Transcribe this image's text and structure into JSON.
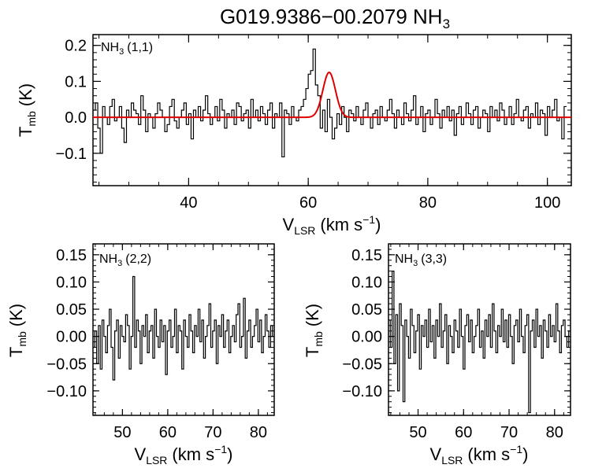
{
  "chart_data": [
    {
      "type": "line",
      "title_main": "G019.9386−00.2079 NH",
      "title_sub": "3",
      "panel_label": "(1,1)",
      "xlabel_main": "V",
      "xlabel_sub": "LSR",
      "xlabel_unit": "(km s",
      "xlabel_sup": "−1",
      "ylabel_main": "T",
      "ylabel_sub": "mb",
      "ylabel_unit": "(K)",
      "xlim": [
        24,
        104
      ],
      "ylim": [
        -0.19,
        0.23
      ],
      "xticks": [
        40,
        60,
        80,
        100
      ],
      "yticks": [
        -0.1,
        0.0,
        0.1,
        0.2
      ],
      "ytick_labels": [
        "−0.1",
        "0.0",
        "0.1",
        "0.2"
      ],
      "spectrum": {
        "x_start": 24,
        "dx": 0.4,
        "values": [
          0.02,
          0.04,
          -0.03,
          -0.1,
          0.03,
          0.0,
          -0.02,
          0.03,
          0.05,
          -0.01,
          0.0,
          0.03,
          -0.03,
          -0.07,
          0.02,
          0.0,
          0.04,
          0.02,
          0.01,
          -0.02,
          0.06,
          0.02,
          -0.04,
          0.01,
          0.0,
          -0.03,
          0.01,
          0.04,
          0.02,
          0.0,
          -0.04,
          -0.02,
          0.03,
          0.05,
          -0.01,
          -0.03,
          0.0,
          0.02,
          0.04,
          -0.02,
          0.01,
          -0.06,
          0.02,
          0.0,
          0.03,
          -0.01,
          0.02,
          0.06,
          0.01,
          -0.02,
          0.0,
          0.03,
          -0.01,
          0.05,
          0.02,
          -0.03,
          0.01,
          0.0,
          0.02,
          -0.02,
          0.04,
          0.03,
          -0.01,
          0.01,
          0.02,
          -0.03,
          0.05,
          0.0,
          0.02,
          -0.01,
          0.03,
          0.01,
          -0.02,
          0.02,
          0.04,
          -0.03,
          0.01,
          0.0,
          0.04,
          -0.11,
          0.02,
          0.01,
          -0.02,
          0.03,
          0.0,
          -0.01,
          0.02,
          0.03,
          0.05,
          0.08,
          0.12,
          0.13,
          0.19,
          0.09,
          0.06,
          -0.03,
          0.02,
          -0.04,
          0.05,
          0.0,
          -0.06,
          -0.03,
          0.01,
          -0.02,
          0.03,
          0.0,
          -0.04,
          0.02,
          0.01,
          -0.01,
          0.03,
          0.0,
          -0.02,
          0.02,
          0.04,
          0.0,
          -0.03,
          0.01,
          0.02,
          -0.02,
          0.03,
          0.0,
          -0.01,
          0.02,
          0.05,
          0.01,
          -0.03,
          0.02,
          0.0,
          -0.02,
          0.04,
          0.01,
          -0.01,
          0.02,
          0.06,
          -0.02,
          0.0,
          0.03,
          -0.04,
          0.01,
          0.02,
          -0.02,
          0.0,
          0.05,
          0.01,
          -0.03,
          0.02,
          0.0,
          0.03,
          -0.01,
          0.02,
          -0.05,
          0.01,
          0.03,
          -0.02,
          0.0,
          0.04,
          0.01,
          -0.02,
          0.02,
          0.03,
          -0.03,
          0.0,
          0.02,
          0.01,
          -0.04,
          0.03,
          0.0,
          0.02,
          -0.01,
          0.04,
          0.02,
          -0.02,
          0.0,
          0.03,
          -0.02,
          0.01,
          0.05,
          0.0,
          -0.01,
          0.02,
          0.03,
          -0.03,
          0.01,
          0.0,
          0.04,
          -0.02,
          0.02,
          0.01,
          -0.05,
          0.03,
          0.0,
          0.02,
          0.05,
          -0.01,
          0.0,
          -0.06,
          0.03
        ]
      },
      "fit": {
        "amplitude": 0.125,
        "center": 63.5,
        "sigma": 1.05
      }
    },
    {
      "type": "line",
      "panel_label": "(2,2)",
      "xlabel_main": "V",
      "xlabel_sub": "LSR",
      "xlabel_unit": "(km s",
      "xlabel_sup": "−1",
      "ylabel_main": "T",
      "ylabel_sub": "mb",
      "ylabel_unit": "(K)",
      "xlim": [
        43.5,
        83.5
      ],
      "ylim": [
        -0.145,
        0.17
      ],
      "xticks": [
        50,
        60,
        70,
        80
      ],
      "yticks": [
        -0.1,
        -0.05,
        0.0,
        0.05,
        0.1,
        0.15
      ],
      "ytick_labels": [
        "−0.10",
        "−0.05",
        "0.00",
        "0.05",
        "0.10",
        "0.15"
      ],
      "spectrum": {
        "x_start": 43.5,
        "dx": 0.4,
        "values": [
          -0.02,
          0.01,
          -0.05,
          0.02,
          -0.06,
          0.03,
          0.0,
          -0.03,
          0.02,
          0.05,
          -0.02,
          -0.08,
          0.01,
          0.03,
          -0.04,
          0.02,
          0.0,
          -0.01,
          0.04,
          0.02,
          -0.06,
          0.0,
          0.11,
          -0.02,
          0.03,
          0.01,
          -0.05,
          0.02,
          0.0,
          0.04,
          -0.03,
          0.01,
          0.02,
          -0.04,
          0.05,
          0.0,
          -0.02,
          0.03,
          -0.01,
          0.02,
          -0.07,
          0.01,
          0.03,
          -0.02,
          0.0,
          0.05,
          -0.03,
          0.02,
          0.01,
          -0.06,
          0.03,
          0.0,
          -0.02,
          0.04,
          0.01,
          -0.03,
          0.02,
          0.0,
          0.05,
          -0.01,
          0.03,
          -0.04,
          0.0,
          0.02,
          0.06,
          -0.02,
          0.01,
          0.03,
          -0.05,
          0.02,
          0.0,
          0.04,
          -0.02,
          0.01,
          0.03,
          -0.03,
          0.0,
          0.02,
          -0.01,
          0.04,
          0.06,
          -0.02,
          0.0,
          0.07,
          -0.04,
          0.01,
          0.03,
          -0.02,
          0.0,
          0.02,
          0.05,
          -0.01,
          0.03,
          -0.03,
          0.0,
          0.04,
          0.01,
          -0.02,
          0.02,
          0.0
        ]
      }
    },
    {
      "type": "line",
      "panel_label": "(3,3)",
      "xlabel_main": "V",
      "xlabel_sub": "LSR",
      "xlabel_unit": "(km s",
      "xlabel_sup": "−1",
      "ylabel_main": "T",
      "ylabel_sub": "mb",
      "ylabel_unit": "(K)",
      "xlim": [
        43.5,
        83.5
      ],
      "ylim": [
        -0.145,
        0.17
      ],
      "xticks": [
        50,
        60,
        70,
        80
      ],
      "yticks": [
        -0.1,
        -0.05,
        0.0,
        0.05,
        0.1,
        0.15
      ],
      "ytick_labels": [
        "−0.10",
        "−0.05",
        "0.00",
        "0.05",
        "0.10",
        "0.15"
      ],
      "spectrum": {
        "x_start": 43.5,
        "dx": 0.4,
        "values": [
          0.03,
          -0.02,
          0.12,
          -0.05,
          0.04,
          -0.1,
          0.06,
          0.02,
          -0.12,
          0.03,
          0.0,
          -0.04,
          0.05,
          0.02,
          -0.03,
          0.01,
          0.04,
          -0.06,
          0.02,
          0.0,
          0.03,
          -0.02,
          0.05,
          -0.01,
          0.02,
          -0.04,
          0.03,
          0.0,
          0.06,
          -0.02,
          0.01,
          0.04,
          -0.05,
          0.02,
          0.0,
          -0.03,
          0.03,
          0.01,
          -0.02,
          0.05,
          0.0,
          -0.06,
          0.02,
          0.04,
          -0.01,
          0.03,
          -0.03,
          0.0,
          0.02,
          0.05,
          -0.02,
          0.01,
          -0.04,
          0.03,
          0.0,
          0.04,
          -0.02,
          0.06,
          0.01,
          -0.03,
          0.02,
          0.0,
          0.05,
          -0.01,
          0.03,
          -0.02,
          0.04,
          0.0,
          -0.05,
          0.02,
          0.03,
          -0.01,
          0.05,
          0.0,
          -0.03,
          0.02,
          0.04,
          -0.14,
          0.01,
          0.03,
          -0.02,
          0.05,
          0.0,
          0.02,
          -0.04,
          0.03,
          0.01,
          -0.02,
          0.04,
          0.0,
          0.02,
          -0.01,
          0.06,
          0.01,
          -0.03,
          0.02,
          0.03,
          0.0,
          -0.02,
          0.01
        ]
      }
    }
  ]
}
